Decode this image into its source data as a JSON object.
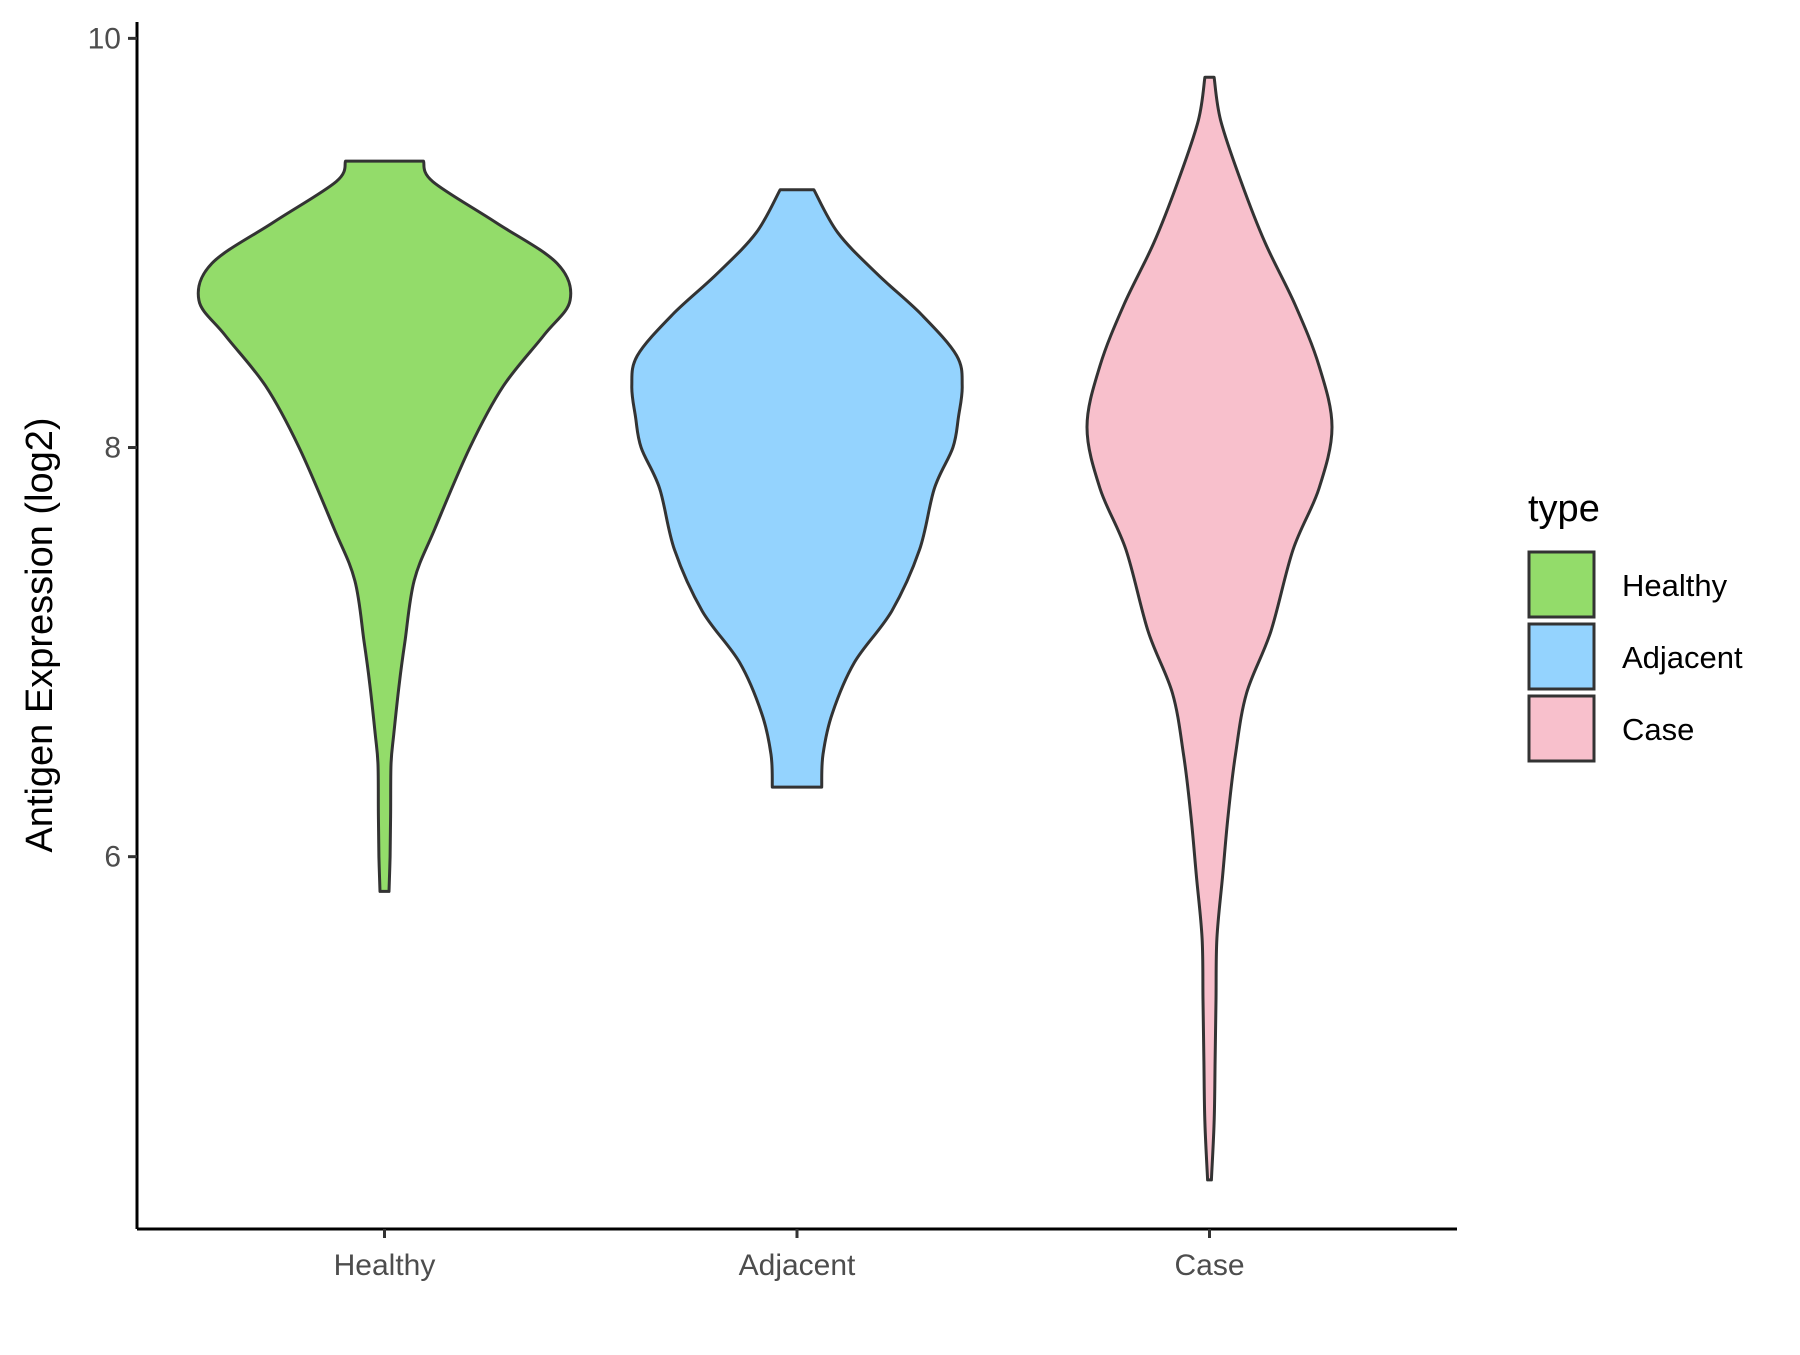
{
  "chart_data": {
    "type": "violin",
    "title": "",
    "xlabel": "",
    "ylabel": "Antigen Expression (log2)",
    "ylim": [
      4.18,
      10.08
    ],
    "yticks": [
      6,
      8,
      10
    ],
    "grid": false,
    "legend": {
      "title": "type",
      "placement": "right",
      "entries": [
        "Healthy",
        "Adjacent",
        "Case"
      ]
    },
    "categories": [
      "Healthy",
      "Adjacent",
      "Case"
    ],
    "series": [
      {
        "name": "Healthy",
        "color": "#93dc6a",
        "min": 5.83,
        "max": 9.4,
        "profile": [
          [
            5.83,
            0.024
          ],
          [
            6.0,
            0.03
          ],
          [
            6.2,
            0.033
          ],
          [
            6.45,
            0.035
          ],
          [
            6.6,
            0.05
          ],
          [
            6.85,
            0.08
          ],
          [
            7.05,
            0.11
          ],
          [
            7.35,
            0.16
          ],
          [
            7.6,
            0.27
          ],
          [
            8.0,
            0.46
          ],
          [
            8.3,
            0.64
          ],
          [
            8.55,
            0.86
          ],
          [
            8.72,
            1.0
          ],
          [
            8.9,
            0.93
          ],
          [
            9.1,
            0.6
          ],
          [
            9.3,
            0.26
          ],
          [
            9.4,
            0.21
          ]
        ]
      },
      {
        "name": "Adjacent",
        "color": "#94d3fe",
        "min": 6.34,
        "max": 9.26,
        "profile": [
          [
            6.34,
            0.133
          ],
          [
            6.5,
            0.14
          ],
          [
            6.7,
            0.19
          ],
          [
            6.95,
            0.31
          ],
          [
            7.2,
            0.51
          ],
          [
            7.5,
            0.66
          ],
          [
            7.8,
            0.74
          ],
          [
            8.0,
            0.84
          ],
          [
            8.15,
            0.87
          ],
          [
            8.3,
            0.89
          ],
          [
            8.45,
            0.86
          ],
          [
            8.65,
            0.67
          ],
          [
            8.85,
            0.43
          ],
          [
            9.05,
            0.22
          ],
          [
            9.26,
            0.091
          ]
        ]
      },
      {
        "name": "Case",
        "color": "#f8c0cc",
        "min": 4.42,
        "max": 9.81,
        "profile": [
          [
            4.42,
            0.01
          ],
          [
            4.7,
            0.025
          ],
          [
            5.0,
            0.03
          ],
          [
            5.3,
            0.035
          ],
          [
            5.6,
            0.04
          ],
          [
            5.9,
            0.07
          ],
          [
            6.2,
            0.1
          ],
          [
            6.5,
            0.14
          ],
          [
            6.8,
            0.2
          ],
          [
            7.1,
            0.33
          ],
          [
            7.5,
            0.45
          ],
          [
            7.8,
            0.59
          ],
          [
            8.1,
            0.66
          ],
          [
            8.4,
            0.59
          ],
          [
            8.7,
            0.46
          ],
          [
            9.0,
            0.3
          ],
          [
            9.3,
            0.17
          ],
          [
            9.6,
            0.06
          ],
          [
            9.81,
            0.025
          ]
        ]
      }
    ]
  }
}
